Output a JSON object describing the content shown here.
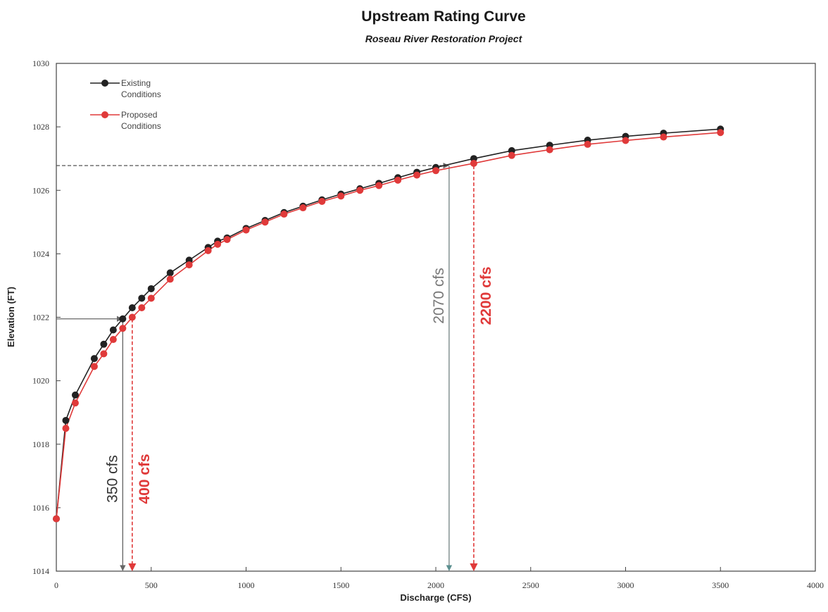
{
  "chart_data": {
    "type": "line",
    "title": "Upstream Rating Curve",
    "subtitle": "Roseau River Restoration Project",
    "xlabel": "Discharge (CFS)",
    "ylabel": "Elevation (FT)",
    "xlim": [
      0,
      4000
    ],
    "ylim": [
      1014,
      1030
    ],
    "xticks": [
      0,
      500,
      1000,
      1500,
      2000,
      2500,
      3000,
      3500,
      4000
    ],
    "yticks": [
      1014,
      1016,
      1018,
      1020,
      1022,
      1024,
      1026,
      1028,
      1030
    ],
    "grid": false,
    "legend_position": "top-left",
    "series": [
      {
        "name": "Existing Conditions",
        "color": "#222222",
        "points": [
          [
            0,
            1015.65
          ],
          [
            50,
            1018.75
          ],
          [
            100,
            1019.55
          ],
          [
            200,
            1020.7
          ],
          [
            250,
            1021.15
          ],
          [
            300,
            1021.6
          ],
          [
            350,
            1021.95
          ],
          [
            400,
            1022.3
          ],
          [
            450,
            1022.6
          ],
          [
            500,
            1022.9
          ],
          [
            600,
            1023.4
          ],
          [
            700,
            1023.8
          ],
          [
            800,
            1024.2
          ],
          [
            850,
            1024.4
          ],
          [
            900,
            1024.5
          ],
          [
            1000,
            1024.8
          ],
          [
            1100,
            1025.05
          ],
          [
            1200,
            1025.3
          ],
          [
            1300,
            1025.5
          ],
          [
            1400,
            1025.7
          ],
          [
            1500,
            1025.88
          ],
          [
            1600,
            1026.05
          ],
          [
            1700,
            1026.22
          ],
          [
            1800,
            1026.4
          ],
          [
            1900,
            1026.57
          ],
          [
            2000,
            1026.72
          ],
          [
            2200,
            1027.0
          ],
          [
            2400,
            1027.25
          ],
          [
            2600,
            1027.42
          ],
          [
            2800,
            1027.58
          ],
          [
            3000,
            1027.7
          ],
          [
            3200,
            1027.8
          ],
          [
            3500,
            1027.93
          ]
        ]
      },
      {
        "name": "Proposed Conditions",
        "color": "#e03a3a",
        "points": [
          [
            0,
            1015.65
          ],
          [
            50,
            1018.5
          ],
          [
            100,
            1019.3
          ],
          [
            200,
            1020.45
          ],
          [
            250,
            1020.85
          ],
          [
            300,
            1021.3
          ],
          [
            350,
            1021.65
          ],
          [
            400,
            1022.0
          ],
          [
            450,
            1022.3
          ],
          [
            500,
            1022.6
          ],
          [
            600,
            1023.2
          ],
          [
            700,
            1023.65
          ],
          [
            800,
            1024.1
          ],
          [
            850,
            1024.3
          ],
          [
            900,
            1024.45
          ],
          [
            1000,
            1024.75
          ],
          [
            1100,
            1025.0
          ],
          [
            1200,
            1025.25
          ],
          [
            1300,
            1025.45
          ],
          [
            1400,
            1025.65
          ],
          [
            1500,
            1025.82
          ],
          [
            1600,
            1026.0
          ],
          [
            1700,
            1026.15
          ],
          [
            1800,
            1026.32
          ],
          [
            1900,
            1026.48
          ],
          [
            2000,
            1026.62
          ],
          [
            2200,
            1026.85
          ],
          [
            2400,
            1027.1
          ],
          [
            2600,
            1027.28
          ],
          [
            2800,
            1027.45
          ],
          [
            3000,
            1027.57
          ],
          [
            3200,
            1027.68
          ],
          [
            3500,
            1027.82
          ]
        ]
      }
    ],
    "annotations": [
      {
        "label": "350 cfs",
        "discharge": 350,
        "elevation": 1021.95,
        "color": "#555555",
        "text_color": "#333333",
        "dashed": false,
        "label_side": "left"
      },
      {
        "label": "400 cfs",
        "discharge": 400,
        "elevation": 1021.95,
        "color": "#e03a3a",
        "text_color": "#e03a3a",
        "dashed": true,
        "label_side": "right"
      },
      {
        "label": "2070 cfs",
        "discharge": 2070,
        "elevation": 1026.78,
        "color": "#667777",
        "text_color": "#777777",
        "dashed": false,
        "label_side": "left"
      },
      {
        "label": "2200 cfs",
        "discharge": 2200,
        "elevation": 1026.78,
        "color": "#e03a3a",
        "text_color": "#e03a3a",
        "dashed": true,
        "label_side": "right"
      }
    ],
    "horizontal_arrows": [
      {
        "elevation": 1021.95,
        "to_discharge": 350,
        "color": "#666666",
        "dashed": false
      },
      {
        "elevation": 1026.78,
        "to_discharge": 2070,
        "color": "#555555",
        "dashed": true
      }
    ]
  }
}
